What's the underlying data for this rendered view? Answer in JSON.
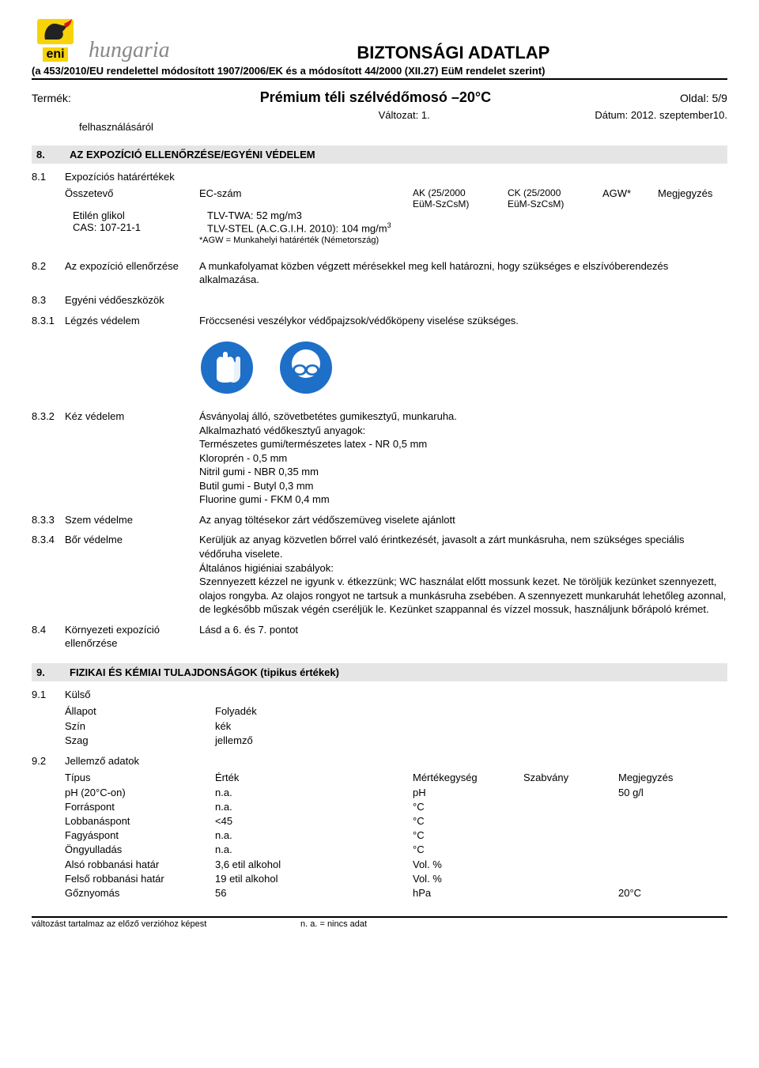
{
  "header": {
    "brand_eni": "eni",
    "brand_hungaria": "hungaria",
    "title": "BIZTONSÁGI ADATLAP",
    "subhead": "(a 453/2010/EU rendelettel módosított 1907/2006/EK és a módosított 44/2000 (XII.27) EüM rendelet szerint)",
    "product_label": "Termék:",
    "product_name": "Prémium téli szélvédőmosó –20°C",
    "page": "Oldal: 5/9",
    "version": "Változat: 1.",
    "date": "Dátum: 2012. szeptember10.",
    "carryover": "felhasználásáról"
  },
  "s8": {
    "num": "8.",
    "title": "AZ EXPOZÍCIÓ ELLENŐRZÉSE/EGYÉNI VÉDELEM",
    "r81_num": "8.1",
    "r81_label": "Expozíciós határértékek",
    "exp_header": {
      "c1": "Összetevő",
      "c2": "EC-szám",
      "c3a": "AK (25/2000",
      "c3b": "EüM-SzCsM)",
      "c4a": "CK (25/2000",
      "c4b": "EüM-SzCsM)",
      "c5": "AGW*",
      "c6": "Megjegyzés"
    },
    "exp_row1": {
      "c1": "Etilén glikol",
      "c2": "TLV-TWA: 52 mg/m3"
    },
    "exp_row2": {
      "c1": "CAS: 107-21-1",
      "c2": "TLV-STEL (A.C.G.I.H. 2010): 104 mg/m³"
    },
    "agw_note": "*AGW = Munkahelyi határérték (Németország)",
    "r82_num": "8.2",
    "r82_label": "Az expozíció ellenőrzése",
    "r82_body": "A munkafolyamat közben végzett mérésekkel meg kell határozni, hogy szükséges e elszívóberendezés alkalmazása.",
    "r83_num": "8.3",
    "r83_label": "Egyéni védőeszközök",
    "r831_num": "8.3.1",
    "r831_label": "Légzés védelem",
    "r831_body": "Fröccsenési veszélykor védőpajzsok/védőköpeny viselése szükséges.",
    "r832_num": "8.3.2",
    "r832_label": "Kéz védelem",
    "r832_lines": [
      "Ásványolaj álló, szövetbetétes gumikesztyű, munkaruha.",
      "Alkalmazható védőkesztyű anyagok:",
      "Természetes gumi/természetes latex - NR 0,5 mm",
      "Kloroprén - 0,5 mm",
      "Nitril gumi - NBR 0,35 mm",
      "Butil gumi - Butyl 0,3 mm",
      "Fluorine gumi - FKM 0,4 mm"
    ],
    "r833_num": "8.3.3",
    "r833_label": "Szem védelme",
    "r833_body": "Az anyag töltésekor zárt védőszemüveg viselete ajánlott",
    "r834_num": "8.3.4",
    "r834_label": "Bőr védelme",
    "r834_body": "Kerüljük az anyag közvetlen bőrrel való érintkezését, javasolt a zárt munkásruha, nem szükséges speciális védőruha viselete.\nÁltalános higiéniai szabályok:\nSzennyezett kézzel ne igyunk v. étkezzünk; WC használat előtt mossunk kezet. Ne töröljük kezünket szennyezett, olajos rongyba. Az olajos rongyot ne tartsuk a munkásruha zsebében. A szennyezett munkaruhát lehetőleg azonnal, de legkésőbb műszak végén cseréljük le. Kezünket szappannal és vízzel mossuk, használjunk bőrápoló krémet.",
    "r84_num": "8.4",
    "r84_label": "Környezeti expozíció ellenőrzése",
    "r84_body": "Lásd a 6. és 7. pontot"
  },
  "s9": {
    "num": "9.",
    "title": "FIZIKAI ÉS KÉMIAI TULAJDONSÁGOK (tipikus értékek)",
    "r91_num": "9.1",
    "r91_label": "Külső",
    "state_label": "Állapot",
    "state_val": "Folyadék",
    "color_label": "Szín",
    "color_val": "kék",
    "odor_label": "Szag",
    "odor_val": "jellemző",
    "r92_num": "9.2",
    "r92_label": "Jellemző adatok",
    "hdr": {
      "p1": "Típus",
      "p2": "Érték",
      "p3": "Mértékegység",
      "p4": "Szabvány",
      "p5": "Megjegyzés"
    },
    "rows": [
      {
        "p1": "pH (20°C-on)",
        "p2": "n.a.",
        "p3": "pH",
        "p4": "",
        "p5": "50 g/l"
      },
      {
        "p1": "Forráspont",
        "p2": "n.a.",
        "p3": "°C",
        "p4": "",
        "p5": ""
      },
      {
        "p1": "Lobbanáspont",
        "p2": "<45",
        "p3": "°C",
        "p4": "",
        "p5": ""
      },
      {
        "p1": "Fagyáspont",
        "p2": "n.a.",
        "p3": "°C",
        "p4": "",
        "p5": ""
      },
      {
        "p1": "Öngyulladás",
        "p2": "n.a.",
        "p3": "°C",
        "p4": "",
        "p5": ""
      },
      {
        "p1": "Alsó robbanási határ",
        "p2": "3,6 etil alkohol",
        "p3": "Vol. %",
        "p4": "",
        "p5": ""
      },
      {
        "p1": "Felső robbanási határ",
        "p2": "19 etil alkohol",
        "p3": "Vol. %",
        "p4": "",
        "p5": ""
      },
      {
        "p1": "Gőznyomás",
        "p2": "56",
        "p3": "hPa",
        "p4": "",
        "p5": "20°C"
      }
    ]
  },
  "footer": {
    "left": "változást tartalmaz az előző verzióhoz képest",
    "right": "n. a. = nincs adat"
  },
  "colors": {
    "eni_yellow": "#f7d30a",
    "eni_red": "#d8121a",
    "icon_blue": "#1e6fc7",
    "section_bg": "#e5e5e5"
  }
}
